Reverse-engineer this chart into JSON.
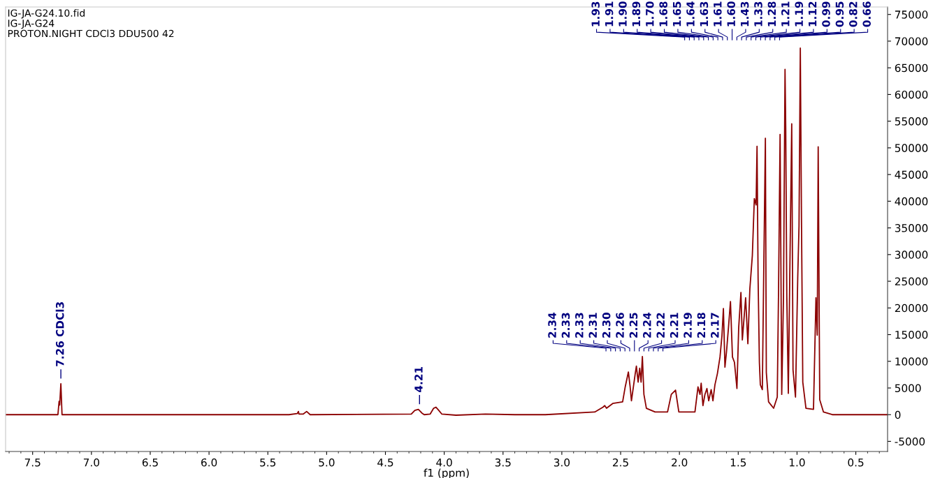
{
  "chart_data": {
    "type": "line",
    "title": "IG-JA-G24.10.fid",
    "subtitle": "IG-JA-G24",
    "xlabel": "f1 (ppm)",
    "annotations": [
      "PROTON.NIGHT CDCl3 DDU500 42",
      {
        "text": "7.26 CDCl3",
        "x": 7.26
      },
      {
        "text": "4.21",
        "x": 4.21
      },
      "2.34",
      "2.33",
      "2.33",
      "2.31",
      "2.30",
      "2.26",
      "2.25",
      "2.24",
      "2.22",
      "2.21",
      "2.19",
      "2.18",
      "2.17",
      "1.93",
      "1.91",
      "1.90",
      "1.89",
      "1.70",
      "1.68",
      "1.65",
      "1.64",
      "1.63",
      "1.61",
      "1.60",
      "1.43",
      "1.33",
      "1.28",
      "1.21",
      "1.19",
      "1.12",
      "0.99",
      "0.95",
      "0.82",
      "0.66"
    ],
    "x": [
      7.73,
      7.285,
      7.275,
      7.27,
      7.26,
      7.25,
      5.32,
      5.25,
      5.24,
      5.235,
      5.2,
      5.17,
      5.14,
      4.28,
      4.25,
      4.22,
      4.19,
      4.17,
      4.12,
      4.09,
      4.07,
      4.05,
      4.02,
      3.9,
      3.65,
      3.4,
      3.14,
      2.72,
      2.65,
      2.635,
      2.62,
      2.567,
      2.483,
      2.461,
      2.434,
      2.419,
      2.408,
      2.377,
      2.366,
      2.351,
      2.338,
      2.326,
      2.315,
      2.302,
      2.281,
      2.207,
      2.101,
      2.069,
      2.033,
      2.005,
      1.868,
      1.842,
      1.825,
      1.815,
      1.8,
      1.783,
      1.766,
      1.751,
      1.73,
      1.715,
      1.698,
      1.677,
      1.655,
      1.638,
      1.626,
      1.613,
      1.6,
      1.583,
      1.566,
      1.549,
      1.532,
      1.511,
      1.496,
      1.477,
      1.465,
      1.437,
      1.418,
      1.401,
      1.38,
      1.363,
      1.348,
      1.34,
      1.331,
      1.32,
      1.312,
      1.295,
      1.284,
      1.269,
      1.261,
      1.242,
      1.199,
      1.168,
      1.157,
      1.144,
      1.13,
      1.115,
      1.102,
      1.096,
      1.087,
      1.074,
      1.062,
      1.045,
      1.034,
      1.013,
      0.994,
      0.983,
      0.972,
      0.962,
      0.951,
      0.924,
      0.86,
      0.839,
      0.828,
      0.82,
      0.807,
      0.775,
      0.7,
      0.23
    ],
    "series": [
      {
        "color": "#8b0000",
        "values": [
          0,
          0,
          2500,
          1800,
          5800,
          0,
          0,
          200,
          600,
          100,
          100,
          600,
          0,
          100,
          800,
          1000,
          300,
          0,
          100,
          1200,
          1400,
          900,
          100,
          -100,
          100,
          0,
          0,
          500,
          1400,
          1700,
          1200,
          2100,
          2400,
          5200,
          8000,
          5200,
          2600,
          7500,
          9100,
          6100,
          8700,
          6100,
          10900,
          3800,
          1200,
          500,
          500,
          3800,
          4600,
          500,
          500,
          5200,
          3800,
          5900,
          1700,
          3800,
          4900,
          2600,
          4700,
          2600,
          5600,
          7700,
          10800,
          14900,
          19900,
          8900,
          11700,
          16300,
          21200,
          10800,
          9800,
          4900,
          16300,
          22900,
          14000,
          21900,
          13300,
          23600,
          29800,
          40500,
          39300,
          50300,
          25600,
          9800,
          5600,
          4700,
          24900,
          51800,
          7900,
          2400,
          1200,
          3300,
          23500,
          52500,
          3800,
          22100,
          64700,
          53800,
          22400,
          4000,
          25200,
          54500,
          8400,
          3300,
          25600,
          35400,
          68700,
          36300,
          6100,
          1200,
          1000,
          21900,
          14900,
          50200,
          2800,
          500,
          0,
          0
        ]
      }
    ],
    "xlim": [
      7.73,
      0.23
    ],
    "xticks": [
      7.5,
      {
        "value": 7,
        "label": "7.0"
      },
      6.5,
      {
        "value": 6,
        "label": "6.0"
      },
      5.5,
      {
        "value": 5,
        "label": "5.0"
      },
      4.5,
      {
        "value": 4,
        "label": "4.0"
      },
      3.5,
      {
        "value": 3,
        "label": "3.0"
      },
      2.5,
      {
        "value": 2,
        "label": "2.0"
      },
      1.5,
      {
        "value": 1,
        "label": "1.0"
      },
      0.5
    ],
    "ylim": [
      -6900,
      76400
    ],
    "yticks": [
      -5000,
      0,
      5000,
      10000,
      15000,
      20000,
      25000,
      30000,
      35000,
      40000,
      45000,
      50000,
      55000,
      60000,
      65000,
      70000,
      75000
    ],
    "grid": false,
    "marker": "none",
    "line_style": "solid"
  }
}
